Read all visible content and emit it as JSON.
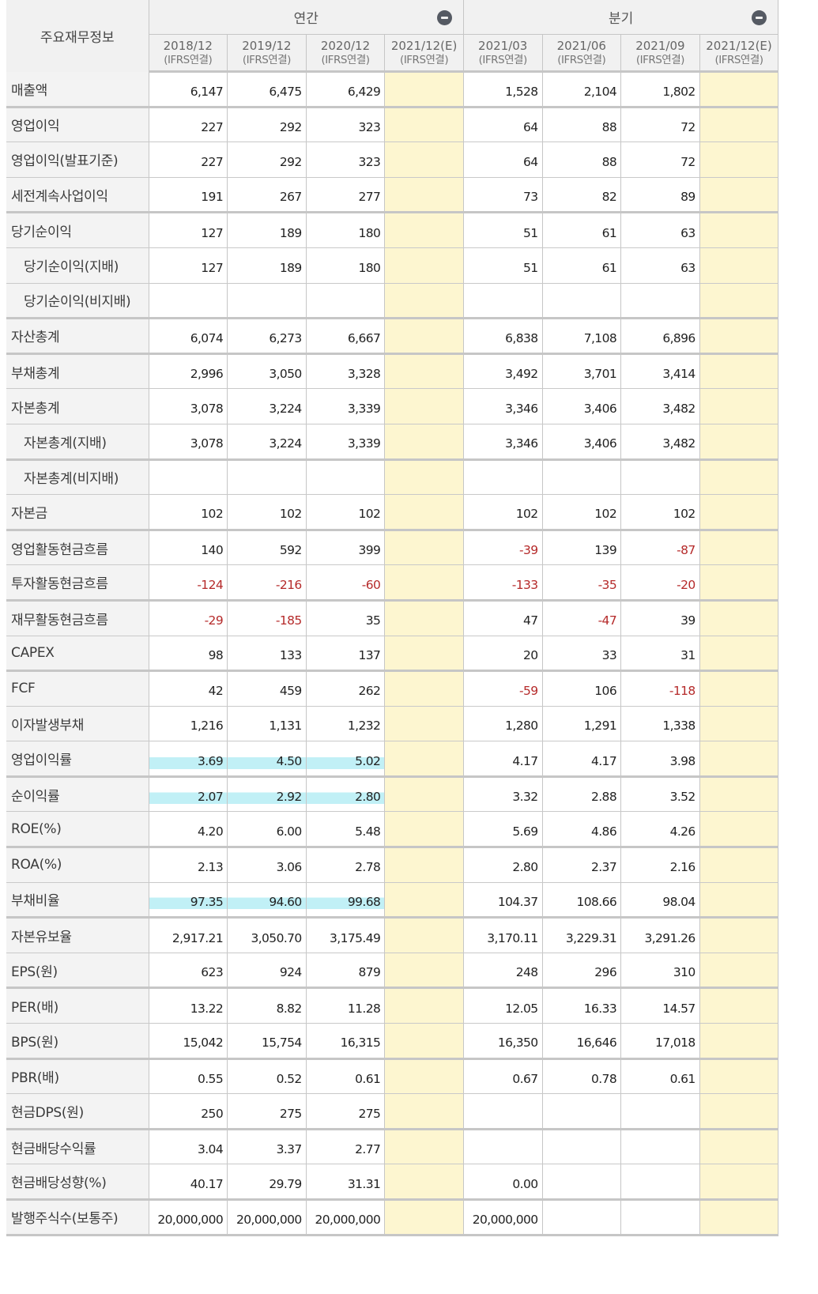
{
  "header": {
    "label_title": "주요재무정보",
    "annual_group": "연간",
    "quarter_group": "분기",
    "collapse_icon": "minus-circle-icon",
    "columns": [
      {
        "period": "2018/12",
        "basis": "(IFRS연결)",
        "estimate": false
      },
      {
        "period": "2019/12",
        "basis": "(IFRS연결)",
        "estimate": false
      },
      {
        "period": "2020/12",
        "basis": "(IFRS연결)",
        "estimate": false
      },
      {
        "period": "2021/12(E)",
        "basis": "(IFRS연결)",
        "estimate": true
      },
      {
        "period": "2021/03",
        "basis": "(IFRS연결)",
        "estimate": false
      },
      {
        "period": "2021/06",
        "basis": "(IFRS연결)",
        "estimate": false
      },
      {
        "period": "2021/09",
        "basis": "(IFRS연결)",
        "estimate": false
      },
      {
        "period": "2021/12(E)",
        "basis": "(IFRS연결)",
        "estimate": true
      }
    ]
  },
  "colors": {
    "estimate_bg": "#fdf6d0",
    "negative": "#b52a2a",
    "highlight": "#aeeaf3",
    "label_bg": "#f3f3f3",
    "border": "#c6c6c6"
  },
  "rows": [
    {
      "label": "매출액",
      "values": [
        "6,147",
        "6,475",
        "6,429",
        "",
        "1,528",
        "2,104",
        "1,802",
        ""
      ]
    },
    {
      "label": "영업이익",
      "values": [
        "227",
        "292",
        "323",
        "",
        "64",
        "88",
        "72",
        ""
      ]
    },
    {
      "label": "영업이익(발표기준)",
      "values": [
        "227",
        "292",
        "323",
        "",
        "64",
        "88",
        "72",
        ""
      ]
    },
    {
      "label": "세전계속사업이익",
      "values": [
        "191",
        "267",
        "277",
        "",
        "73",
        "82",
        "89",
        ""
      ]
    },
    {
      "label": "당기순이익",
      "values": [
        "127",
        "189",
        "180",
        "",
        "51",
        "61",
        "63",
        ""
      ]
    },
    {
      "label": "당기순이익(지배)",
      "values": [
        "127",
        "189",
        "180",
        "",
        "51",
        "61",
        "63",
        ""
      ]
    },
    {
      "label": "당기순이익(비지배)",
      "values": [
        "",
        "",
        "",
        "",
        "",
        "",
        "",
        ""
      ]
    },
    {
      "label": "자산총계",
      "values": [
        "6,074",
        "6,273",
        "6,667",
        "",
        "6,838",
        "7,108",
        "6,896",
        ""
      ]
    },
    {
      "label": "부채총계",
      "values": [
        "2,996",
        "3,050",
        "3,328",
        "",
        "3,492",
        "3,701",
        "3,414",
        ""
      ]
    },
    {
      "label": "자본총계",
      "values": [
        "3,078",
        "3,224",
        "3,339",
        "",
        "3,346",
        "3,406",
        "3,482",
        ""
      ]
    },
    {
      "label": "자본총계(지배)",
      "values": [
        "3,078",
        "3,224",
        "3,339",
        "",
        "3,346",
        "3,406",
        "3,482",
        ""
      ]
    },
    {
      "label": "자본총계(비지배)",
      "values": [
        "",
        "",
        "",
        "",
        "",
        "",
        "",
        ""
      ]
    },
    {
      "label": "자본금",
      "values": [
        "102",
        "102",
        "102",
        "",
        "102",
        "102",
        "102",
        ""
      ]
    },
    {
      "label": "영업활동현금흐름",
      "values": [
        "140",
        "592",
        "399",
        "",
        "-39",
        "139",
        "-87",
        ""
      ]
    },
    {
      "label": "투자활동현금흐름",
      "values": [
        "-124",
        "-216",
        "-60",
        "",
        "-133",
        "-35",
        "-20",
        ""
      ]
    },
    {
      "label": "재무활동현금흐름",
      "values": [
        "-29",
        "-185",
        "35",
        "",
        "47",
        "-47",
        "39",
        ""
      ]
    },
    {
      "label": "CAPEX",
      "values": [
        "98",
        "133",
        "137",
        "",
        "20",
        "33",
        "31",
        ""
      ]
    },
    {
      "label": "FCF",
      "values": [
        "42",
        "459",
        "262",
        "",
        "-59",
        "106",
        "-118",
        ""
      ]
    },
    {
      "label": "이자발생부채",
      "values": [
        "1,216",
        "1,131",
        "1,232",
        "",
        "1,280",
        "1,291",
        "1,338",
        ""
      ]
    },
    {
      "label": "영업이익률",
      "values": [
        "3.69",
        "4.50",
        "5.02",
        "",
        "4.17",
        "4.17",
        "3.98",
        ""
      ]
    },
    {
      "label": "순이익률",
      "values": [
        "2.07",
        "2.92",
        "2.80",
        "",
        "3.32",
        "2.88",
        "3.52",
        ""
      ]
    },
    {
      "label": "ROE(%)",
      "values": [
        "4.20",
        "6.00",
        "5.48",
        "",
        "5.69",
        "4.86",
        "4.26",
        ""
      ]
    },
    {
      "label": "ROA(%)",
      "values": [
        "2.13",
        "3.06",
        "2.78",
        "",
        "2.80",
        "2.37",
        "2.16",
        ""
      ]
    },
    {
      "label": "부채비율",
      "values": [
        "97.35",
        "94.60",
        "99.68",
        "",
        "104.37",
        "108.66",
        "98.04",
        ""
      ]
    },
    {
      "label": "자본유보율",
      "values": [
        "2,917.21",
        "3,050.70",
        "3,175.49",
        "",
        "3,170.11",
        "3,229.31",
        "3,291.26",
        ""
      ]
    },
    {
      "label": "EPS(원)",
      "values": [
        "623",
        "924",
        "879",
        "",
        "248",
        "296",
        "310",
        ""
      ]
    },
    {
      "label": "PER(배)",
      "values": [
        "13.22",
        "8.82",
        "11.28",
        "",
        "12.05",
        "16.33",
        "14.57",
        ""
      ]
    },
    {
      "label": "BPS(원)",
      "values": [
        "15,042",
        "15,754",
        "16,315",
        "",
        "16,350",
        "16,646",
        "17,018",
        ""
      ]
    },
    {
      "label": "PBR(배)",
      "values": [
        "0.55",
        "0.52",
        "0.61",
        "",
        "0.67",
        "0.78",
        "0.61",
        ""
      ]
    },
    {
      "label": "현금DPS(원)",
      "values": [
        "250",
        "275",
        "275",
        "",
        "",
        "",
        "",
        ""
      ]
    },
    {
      "label": "현금배당수익률",
      "values": [
        "3.04",
        "3.37",
        "2.77",
        "",
        "",
        "",
        "",
        ""
      ]
    },
    {
      "label": "현금배당성향(%)",
      "values": [
        "40.17",
        "29.79",
        "31.31",
        "",
        "0.00",
        "",
        "",
        ""
      ]
    },
    {
      "label": "발행주식수(보통주)",
      "values": [
        "20,000,000",
        "20,000,000",
        "20,000,000",
        "",
        "20,000,000",
        "",
        "",
        ""
      ]
    }
  ]
}
